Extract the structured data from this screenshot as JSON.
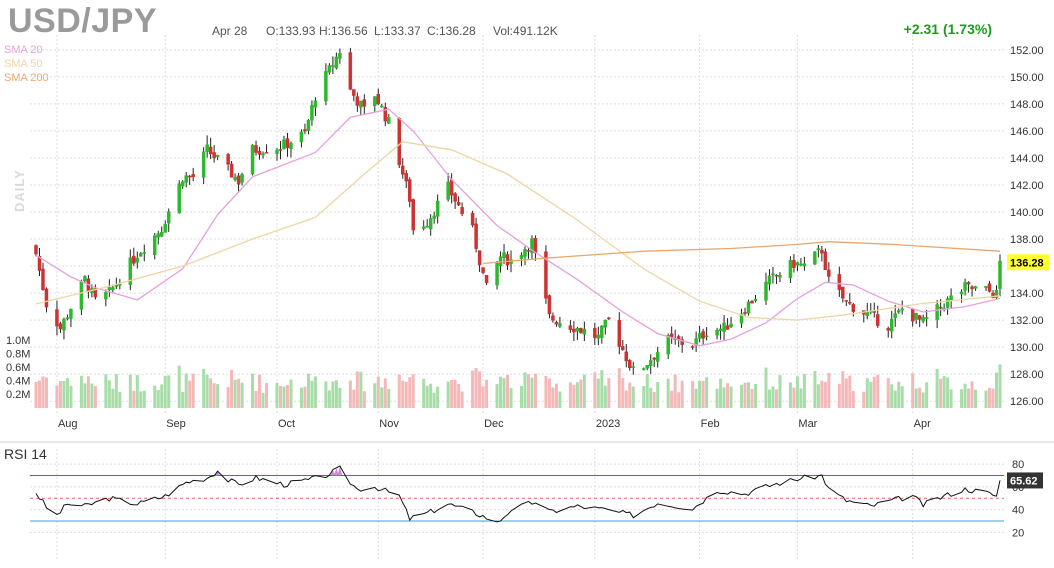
{
  "header": {
    "symbol": "USD/JPY",
    "date": "Apr 28",
    "open": "O:133.93",
    "high": "H:136.56",
    "low": "L:133.37",
    "close": "C:136.28",
    "volume": "Vol:491.12K",
    "change": "+2.31 (1.73%)",
    "timeframe": "DAILY"
  },
  "colors": {
    "up": "#2eb82e",
    "down": "#cc3333",
    "vol_up": "#a8dca8",
    "vol_down": "#f4b8b8",
    "sma20": "#e6a0dc",
    "sma50": "#ecd6a4",
    "sma200": "#eba66c",
    "rsi_line": "#111111",
    "rsi_upper": "#a13db5",
    "rsi_lower": "#4a9fd4",
    "rsi_mid": "#e06666",
    "price_tag": "#ffff33",
    "rsi_tag": "#333333",
    "change": "#1a9e1a"
  },
  "legend": [
    {
      "label": "SMA 20",
      "color": "#e6a0dc"
    },
    {
      "label": "SMA 50",
      "color": "#ecd6a4"
    },
    {
      "label": "SMA 200",
      "color": "#eba66c"
    }
  ],
  "chart_data": [
    {
      "type": "candlestick",
      "x_range": [
        "Jul 26",
        "Apr 28"
      ],
      "x_ticks": [
        "Aug",
        "Sep",
        "Oct",
        "Nov",
        "Dec",
        "2023",
        "Feb",
        "Mar",
        "Apr"
      ],
      "ylim": [
        125.5,
        152.5
      ],
      "y_ticks": [
        126,
        128,
        130,
        132,
        134,
        136,
        138,
        140,
        142,
        144,
        146,
        148,
        150,
        152
      ],
      "last_price": 136.28,
      "grid": true,
      "legend_position": "top-left",
      "close_path": [
        {
          "date": "Jul 26",
          "value": 136.9
        },
        {
          "date": "Jul 29",
          "value": 133.2
        },
        {
          "date": "Aug 2",
          "value": 131.4
        },
        {
          "date": "Aug 9",
          "value": 135.0
        },
        {
          "date": "Aug 12",
          "value": 133.4
        },
        {
          "date": "Aug 16",
          "value": 134.0
        },
        {
          "date": "Aug 24",
          "value": 136.9
        },
        {
          "date": "Aug 31",
          "value": 138.8
        },
        {
          "date": "Sep 6",
          "value": 142.6
        },
        {
          "date": "Sep 9",
          "value": 142.6
        },
        {
          "date": "Sep 13",
          "value": 144.6
        },
        {
          "date": "Sep 19",
          "value": 143.1
        },
        {
          "date": "Sep 22",
          "value": 142.3
        },
        {
          "date": "Sep 26",
          "value": 144.6
        },
        {
          "date": "Oct 4",
          "value": 144.8
        },
        {
          "date": "Oct 11",
          "value": 145.8
        },
        {
          "date": "Oct 14",
          "value": 148.6
        },
        {
          "date": "Oct 21",
          "value": 151.9
        },
        {
          "date": "Oct 24",
          "value": 149.0
        },
        {
          "date": "Oct 28",
          "value": 147.5
        },
        {
          "date": "Oct 31",
          "value": 148.7
        },
        {
          "date": "Nov 4",
          "value": 146.6
        },
        {
          "date": "Nov 10",
          "value": 141.0
        },
        {
          "date": "Nov 11",
          "value": 138.7
        },
        {
          "date": "Nov 15",
          "value": 139.3
        },
        {
          "date": "Nov 21",
          "value": 141.8
        },
        {
          "date": "Nov 28",
          "value": 138.6
        },
        {
          "date": "Dec 2",
          "value": 134.3
        },
        {
          "date": "Dec 6",
          "value": 136.7
        },
        {
          "date": "Dec 9",
          "value": 136.4
        },
        {
          "date": "Dec 15",
          "value": 137.8
        },
        {
          "date": "Dec 20",
          "value": 132.2
        },
        {
          "date": "Dec 30",
          "value": 131.2
        },
        {
          "date": "Jan 3",
          "value": 130.7
        },
        {
          "date": "Jan 6",
          "value": 132.0
        },
        {
          "date": "Jan 13",
          "value": 128.2
        },
        {
          "date": "Jan 16",
          "value": 128.6
        },
        {
          "date": "Jan 23",
          "value": 130.5
        },
        {
          "date": "Jan 30",
          "value": 130.2
        },
        {
          "date": "Feb 3",
          "value": 131.2
        },
        {
          "date": "Feb 8",
          "value": 131.4
        },
        {
          "date": "Feb 14",
          "value": 132.9
        },
        {
          "date": "Feb 21",
          "value": 134.9
        },
        {
          "date": "Feb 28",
          "value": 136.2
        },
        {
          "date": "Mar 3",
          "value": 136.0
        },
        {
          "date": "Mar 8",
          "value": 137.2
        },
        {
          "date": "Mar 10",
          "value": 134.9
        },
        {
          "date": "Mar 15",
          "value": 133.3
        },
        {
          "date": "Mar 22",
          "value": 132.3
        },
        {
          "date": "Mar 27",
          "value": 131.6
        },
        {
          "date": "Mar 31",
          "value": 132.8
        },
        {
          "date": "Apr 6",
          "value": 131.8
        },
        {
          "date": "Apr 12",
          "value": 133.2
        },
        {
          "date": "Apr 18",
          "value": 134.4
        },
        {
          "date": "Apr 24",
          "value": 134.2
        },
        {
          "date": "Apr 27",
          "value": 133.9
        },
        {
          "date": "Apr 28",
          "value": 136.28
        }
      ],
      "series": [
        {
          "name": "SMA 20",
          "points": [
            {
              "date": "Jul 26",
              "value": 136.8
            },
            {
              "date": "Aug 5",
              "value": 135.2
            },
            {
              "date": "Aug 12",
              "value": 134.4
            },
            {
              "date": "Aug 24",
              "value": 133.5
            },
            {
              "date": "Sep 6",
              "value": 135.8
            },
            {
              "date": "Sep 16",
              "value": 139.8
            },
            {
              "date": "Sep 26",
              "value": 142.6
            },
            {
              "date": "Oct 6",
              "value": 143.6
            },
            {
              "date": "Oct 14",
              "value": 144.4
            },
            {
              "date": "Oct 24",
              "value": 147.0
            },
            {
              "date": "Nov 4",
              "value": 147.6
            },
            {
              "date": "Nov 11",
              "value": 146.0
            },
            {
              "date": "Nov 22",
              "value": 142.4
            },
            {
              "date": "Dec 5",
              "value": 139.0
            },
            {
              "date": "Dec 16",
              "value": 137.0
            },
            {
              "date": "Dec 28",
              "value": 135.0
            },
            {
              "date": "Jan 10",
              "value": 132.6
            },
            {
              "date": "Jan 20",
              "value": 131.0
            },
            {
              "date": "Feb 1",
              "value": 130.1
            },
            {
              "date": "Feb 10",
              "value": 130.6
            },
            {
              "date": "Feb 20",
              "value": 131.8
            },
            {
              "date": "Mar 1",
              "value": 133.6
            },
            {
              "date": "Mar 9",
              "value": 134.8
            },
            {
              "date": "Mar 17",
              "value": 134.6
            },
            {
              "date": "Mar 27",
              "value": 133.4
            },
            {
              "date": "Apr 6",
              "value": 132.6
            },
            {
              "date": "Apr 18",
              "value": 133.0
            },
            {
              "date": "Apr 28",
              "value": 133.6
            }
          ]
        },
        {
          "name": "SMA 50",
          "points": [
            {
              "date": "Jul 26",
              "value": 133.2
            },
            {
              "date": "Aug 16",
              "value": 134.5
            },
            {
              "date": "Sep 6",
              "value": 136.0
            },
            {
              "date": "Sep 26",
              "value": 138.0
            },
            {
              "date": "Oct 14",
              "value": 139.6
            },
            {
              "date": "Oct 28",
              "value": 142.8
            },
            {
              "date": "Nov 8",
              "value": 145.2
            },
            {
              "date": "Nov 22",
              "value": 144.6
            },
            {
              "date": "Dec 8",
              "value": 142.8
            },
            {
              "date": "Dec 28",
              "value": 139.4
            },
            {
              "date": "Jan 16",
              "value": 135.8
            },
            {
              "date": "Feb 1",
              "value": 133.4
            },
            {
              "date": "Feb 15",
              "value": 132.2
            },
            {
              "date": "Mar 1",
              "value": 132.0
            },
            {
              "date": "Mar 15",
              "value": 132.4
            },
            {
              "date": "Apr 5",
              "value": 133.2
            },
            {
              "date": "Apr 28",
              "value": 133.8
            }
          ]
        },
        {
          "name": "SMA 200",
          "points": [
            {
              "date": "Dec 1",
              "value": 136.2
            },
            {
              "date": "Dec 20",
              "value": 136.6
            },
            {
              "date": "Jan 16",
              "value": 137.1
            },
            {
              "date": "Feb 10",
              "value": 137.3
            },
            {
              "date": "Mar 1",
              "value": 137.6
            },
            {
              "date": "Mar 10",
              "value": 137.8
            },
            {
              "date": "Mar 28",
              "value": 137.6
            },
            {
              "date": "Apr 28",
              "value": 137.1
            }
          ]
        }
      ]
    },
    {
      "type": "bar",
      "title": "Volume",
      "y_ticks": [
        "0.2M",
        "0.4M",
        "0.6M",
        "0.8M",
        "1.0M"
      ]
    },
    {
      "type": "line",
      "title": "RSI 14",
      "ylim": [
        15,
        88
      ],
      "y_ticks": [
        20,
        40,
        60,
        80
      ],
      "upper_band": 70,
      "lower_band": 30,
      "mid_line": 50,
      "last_value": "65.62",
      "points": [
        {
          "date": "Jul 26",
          "value": 55
        },
        {
          "date": "Jul 29",
          "value": 42
        },
        {
          "date": "Aug 1",
          "value": 35
        },
        {
          "date": "Aug 4",
          "value": 45
        },
        {
          "date": "Aug 9",
          "value": 43
        },
        {
          "date": "Aug 16",
          "value": 50
        },
        {
          "date": "Aug 24",
          "value": 45
        },
        {
          "date": "Sep 1",
          "value": 52
        },
        {
          "date": "Sep 7",
          "value": 64
        },
        {
          "date": "Sep 13",
          "value": 68
        },
        {
          "date": "Sep 16",
          "value": 74
        },
        {
          "date": "Sep 19",
          "value": 66
        },
        {
          "date": "Sep 22",
          "value": 62
        },
        {
          "date": "Sep 27",
          "value": 68
        },
        {
          "date": "Oct 5",
          "value": 62
        },
        {
          "date": "Oct 12",
          "value": 66
        },
        {
          "date": "Oct 17",
          "value": 70
        },
        {
          "date": "Oct 21",
          "value": 76
        },
        {
          "date": "Oct 24",
          "value": 64
        },
        {
          "date": "Oct 26",
          "value": 58
        },
        {
          "date": "Oct 31",
          "value": 60
        },
        {
          "date": "Nov 7",
          "value": 52
        },
        {
          "date": "Nov 10",
          "value": 32
        },
        {
          "date": "Nov 16",
          "value": 38
        },
        {
          "date": "Nov 21",
          "value": 45
        },
        {
          "date": "Nov 28",
          "value": 38
        },
        {
          "date": "Dec 2",
          "value": 33
        },
        {
          "date": "Dec 5",
          "value": 28
        },
        {
          "date": "Dec 9",
          "value": 40
        },
        {
          "date": "Dec 16",
          "value": 47
        },
        {
          "date": "Dec 20",
          "value": 38
        },
        {
          "date": "Dec 28",
          "value": 43
        },
        {
          "date": "Jan 5",
          "value": 40
        },
        {
          "date": "Jan 13",
          "value": 35
        },
        {
          "date": "Jan 20",
          "value": 46
        },
        {
          "date": "Jan 30",
          "value": 41
        },
        {
          "date": "Feb 6",
          "value": 57
        },
        {
          "date": "Feb 14",
          "value": 54
        },
        {
          "date": "Feb 22",
          "value": 62
        },
        {
          "date": "Mar 1",
          "value": 67
        },
        {
          "date": "Mar 8",
          "value": 70
        },
        {
          "date": "Mar 10",
          "value": 58
        },
        {
          "date": "Mar 15",
          "value": 48
        },
        {
          "date": "Mar 22",
          "value": 43
        },
        {
          "date": "Mar 28",
          "value": 48
        },
        {
          "date": "Apr 3",
          "value": 52
        },
        {
          "date": "Apr 6",
          "value": 44
        },
        {
          "date": "Apr 12",
          "value": 52
        },
        {
          "date": "Apr 18",
          "value": 58
        },
        {
          "date": "Apr 24",
          "value": 55
        },
        {
          "date": "Apr 27",
          "value": 52
        },
        {
          "date": "Apr 28",
          "value": 65.62
        }
      ]
    }
  ]
}
